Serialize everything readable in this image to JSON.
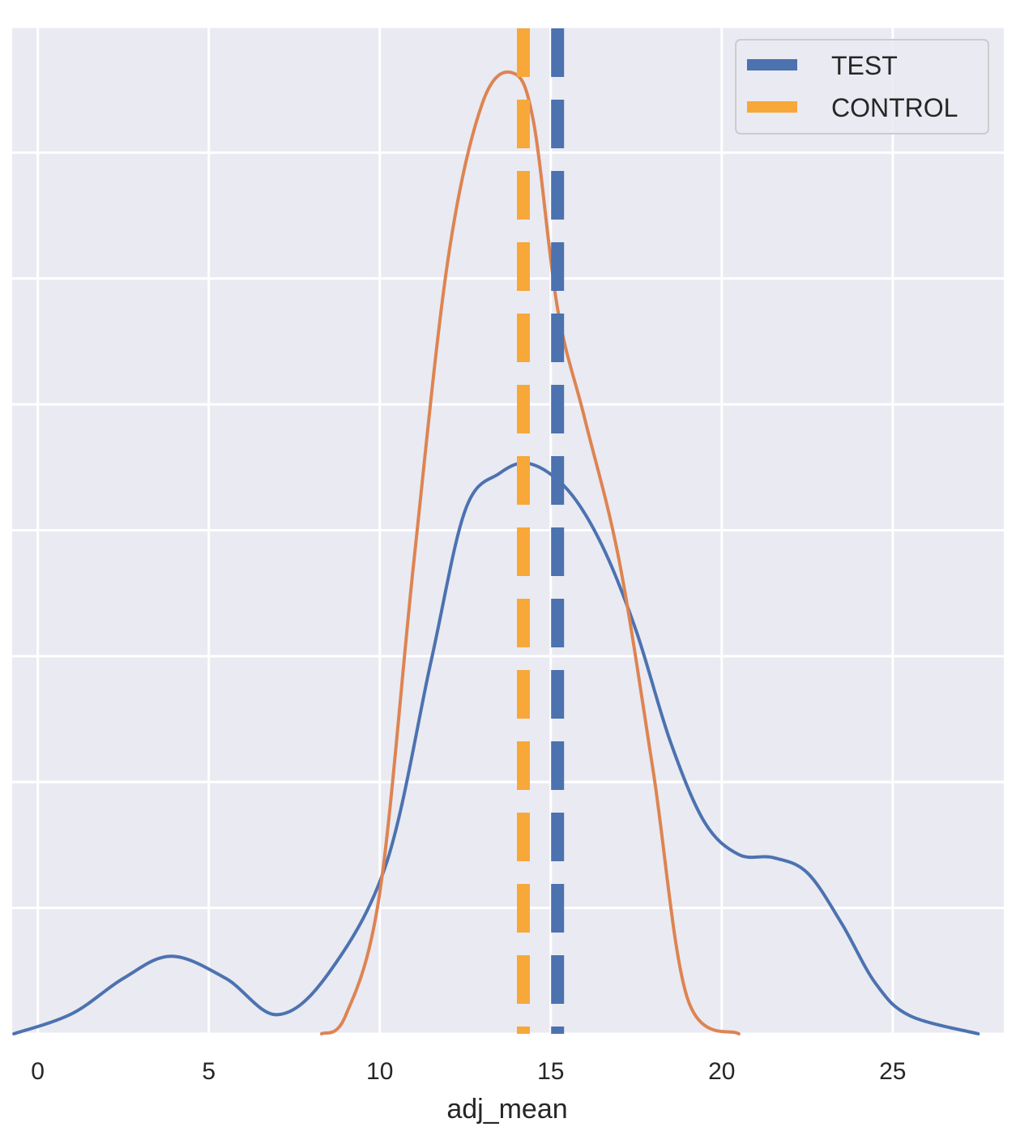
{
  "chart_data": {
    "type": "line",
    "title": "",
    "xlabel": "adj_mean",
    "ylabel": "",
    "xlim": [
      -0.75,
      28.25
    ],
    "ylim": [
      0,
      1
    ],
    "x_ticks": [
      0,
      5,
      10,
      15,
      20,
      25
    ],
    "x_tick_labels": [
      "0",
      "5",
      "10",
      "15",
      "20",
      "25"
    ],
    "y_gridlines": 8,
    "grid": true,
    "background_color": "#eaeaf2",
    "legend_position": "top-right",
    "series": [
      {
        "name": "TEST",
        "color": "#4c72b0",
        "x": [
          -0.7,
          1,
          2.5,
          3.9,
          5.5,
          7.0,
          8.5,
          10.2,
          11.5,
          12.5,
          13.5,
          14.4,
          15.5,
          16.5,
          17.5,
          18.5,
          19.5,
          20.5,
          21.5,
          22.5,
          23.5,
          24.5,
          25.5,
          27.5
        ],
        "y": [
          0.0,
          0.02,
          0.055,
          0.077,
          0.055,
          0.019,
          0.06,
          0.17,
          0.37,
          0.52,
          0.5565,
          0.566,
          0.54,
          0.485,
          0.4,
          0.29,
          0.21,
          0.178,
          0.175,
          0.16,
          0.11,
          0.05,
          0.018,
          0.0
        ]
      },
      {
        "name": "CONTROL",
        "color": "#dd8452",
        "x": [
          8.3,
          9.0,
          10.0,
          11.0,
          12.0,
          13.0,
          13.9,
          14.5,
          15.2,
          16.0,
          17.0,
          18.0,
          19.0,
          20.5
        ],
        "y": [
          0.0,
          0.018,
          0.14,
          0.47,
          0.77,
          0.924,
          0.954,
          0.905,
          0.72,
          0.61,
          0.47,
          0.26,
          0.035,
          0.0
        ]
      }
    ],
    "reference_lines": [
      {
        "name": "TEST",
        "x": 15.2,
        "color": "#4c72b0",
        "style": "dashed"
      },
      {
        "name": "CONTROL",
        "x": 14.2,
        "color": "#f7a839",
        "style": "dashed"
      }
    ],
    "legend": [
      {
        "label": "TEST",
        "color": "#4c72b0"
      },
      {
        "label": "CONTROL",
        "color": "#f7a839"
      }
    ]
  }
}
